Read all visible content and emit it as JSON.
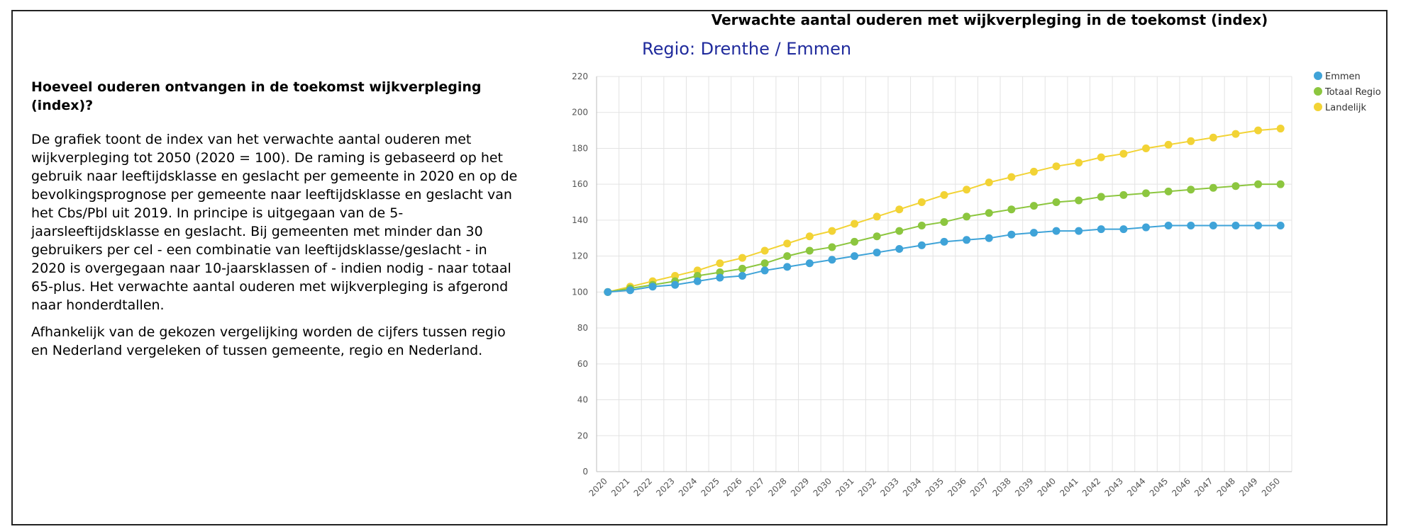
{
  "text_panel": {
    "heading": "Hoeveel ouderen ontvangen in de toekomst wijkverpleging (index)?",
    "paragraph1": "De grafiek toont de index van het verwachte aantal ouderen met wijkverpleging tot 2050 (2020 = 100). De raming is gebaseerd op het gebruik naar leeftijdsklasse en geslacht per gemeente in 2020 en op de bevolkingsprognose per gemeente naar leeftijdsklasse en geslacht van het Cbs/Pbl uit 2019. In principe is uitgegaan van de 5-jaarsleeftijdsklasse en geslacht. Bij gemeenten met minder dan 30 gebruikers per cel - een combinatie van leeftijdsklasse/geslacht - in 2020 is overgegaan naar 10-jaarsklassen of - indien nodig - naar totaal 65-plus. Het verwachte aantal ouderen met wijkverpleging is afgerond naar honderdtallen.",
    "paragraph2": "Afhankelijk van de gekozen vergelijking worden de cijfers tussen regio en Nederland vergeleken of tussen gemeente, regio en Nederland."
  },
  "chart_header": {
    "title": "Verwachte aantal ouderen met wijkverpleging in de toekomst (index)",
    "region_line": "Regio:  Drenthe /  Emmen"
  },
  "chart_data": {
    "type": "line",
    "title": "Verwachte aantal ouderen met wijkverpleging in de toekomst (index)",
    "xlabel": "",
    "ylabel": "",
    "ylim": [
      0,
      220
    ],
    "y_ticks": [
      0,
      20,
      40,
      60,
      80,
      100,
      120,
      140,
      160,
      180,
      200,
      220
    ],
    "grid": true,
    "legend_position": "top-right",
    "x": [
      "2020",
      "2021",
      "2022",
      "2023",
      "2024",
      "2025",
      "2026",
      "2027",
      "2028",
      "2029",
      "2030",
      "2031",
      "2032",
      "2033",
      "2034",
      "2035",
      "2036",
      "2037",
      "2038",
      "2039",
      "2040",
      "2041",
      "2042",
      "2043",
      "2044",
      "2045",
      "2046",
      "2047",
      "2048",
      "2049",
      "2050"
    ],
    "series": [
      {
        "name": "Emmen",
        "color": "#3fa3d8",
        "values": [
          100,
          101,
          103,
          104,
          106,
          108,
          109,
          112,
          114,
          116,
          118,
          120,
          122,
          124,
          126,
          128,
          129,
          130,
          132,
          133,
          134,
          134,
          135,
          135,
          136,
          137,
          137,
          137,
          137,
          137,
          137
        ]
      },
      {
        "name": "Totaal Regio",
        "color": "#8cc63f",
        "values": [
          100,
          102,
          104,
          106,
          109,
          111,
          113,
          116,
          120,
          123,
          125,
          128,
          131,
          134,
          137,
          139,
          142,
          144,
          146,
          148,
          150,
          151,
          153,
          154,
          155,
          156,
          157,
          158,
          159,
          160,
          160
        ]
      },
      {
        "name": "Landelijk",
        "color": "#f2d335",
        "values": [
          100,
          103,
          106,
          109,
          112,
          116,
          119,
          123,
          127,
          131,
          134,
          138,
          142,
          146,
          150,
          154,
          157,
          161,
          164,
          167,
          170,
          172,
          175,
          177,
          180,
          182,
          184,
          186,
          188,
          190,
          191
        ]
      }
    ]
  }
}
